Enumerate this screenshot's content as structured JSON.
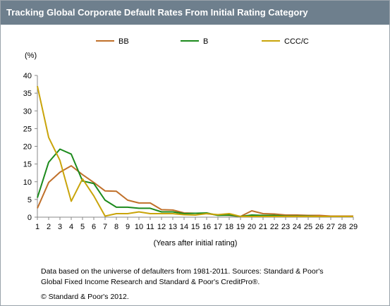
{
  "title": "Tracking Global Corporate Default Rates From Initial Rating Category",
  "footnote_lines": [
    "Data based on the universe of defaulters from 1981-2011. Sources: Standard & Poor's",
    "Global Fixed Income Research and Standard & Poor's CreditPro®."
  ],
  "copyright": "© Standard & Poor's 2012.",
  "chart_data": {
    "type": "line",
    "x": [
      1,
      2,
      3,
      4,
      5,
      6,
      7,
      8,
      9,
      10,
      11,
      12,
      13,
      14,
      15,
      16,
      17,
      18,
      19,
      20,
      21,
      22,
      23,
      24,
      25,
      26,
      27,
      28,
      29
    ],
    "xlabel": "(Years after initial rating)",
    "ylabel": "(%)",
    "ylim": [
      0,
      40
    ],
    "yticks": [
      0,
      5,
      10,
      15,
      20,
      25,
      30,
      35,
      40
    ],
    "grid": false,
    "legend_position": "top",
    "series": [
      {
        "name": "BB",
        "color": "#c0702a",
        "values": [
          2.5,
          9.8,
          12.7,
          14.5,
          12.0,
          9.8,
          7.4,
          7.3,
          4.8,
          4.0,
          4.0,
          2.1,
          2.0,
          1.2,
          1.1,
          1.0,
          0.6,
          0.5,
          0.2,
          1.8,
          1.0,
          0.9,
          0.6,
          0.6,
          0.5,
          0.5,
          0.3,
          0.3,
          0.3
        ]
      },
      {
        "name": "B",
        "color": "#1c8a1c",
        "values": [
          5.5,
          15.5,
          19.2,
          17.8,
          10.2,
          9.5,
          4.8,
          2.8,
          2.8,
          2.5,
          2.5,
          1.5,
          1.5,
          1.0,
          1.1,
          1.2,
          0.5,
          0.6,
          0.2,
          0.6,
          0.5,
          0.5,
          0.3,
          0.3,
          0.3,
          0.2,
          0.2,
          0.2,
          0.2
        ]
      },
      {
        "name": "CCC/C",
        "color": "#c9a40a",
        "values": [
          37.0,
          22.5,
          16.0,
          4.5,
          10.8,
          6.0,
          0.3,
          1.0,
          1.0,
          1.5,
          1.0,
          1.0,
          1.0,
          0.7,
          0.6,
          1.0,
          0.7,
          1.0,
          0.2,
          0.2,
          0.2,
          0.2,
          0.2,
          0.2,
          0.2,
          0.2,
          0.2,
          0.2,
          0.2
        ]
      }
    ]
  }
}
